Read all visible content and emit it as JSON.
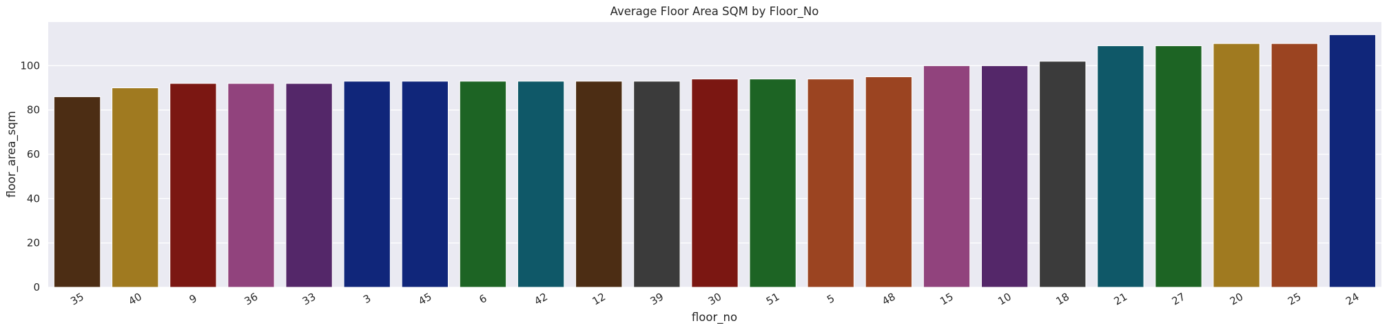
{
  "chart_data": {
    "type": "bar",
    "title": "Average Floor Area SQM by Floor_No",
    "xlabel": "floor_no",
    "ylabel": "floor_area_sqm",
    "categories": [
      "35",
      "40",
      "9",
      "36",
      "33",
      "3",
      "45",
      "6",
      "42",
      "12",
      "39",
      "30",
      "51",
      "5",
      "48",
      "15",
      "10",
      "18",
      "21",
      "27",
      "20",
      "25",
      "24"
    ],
    "values": [
      86,
      90,
      92,
      92,
      92,
      93,
      93,
      93,
      93,
      93,
      93,
      94,
      94,
      94,
      95,
      100,
      100,
      102,
      109,
      109,
      110,
      110,
      114
    ],
    "bar_colors": [
      "#4c2d14",
      "#a07a20",
      "#7b1712",
      "#91437d",
      "#542769",
      "#10267a",
      "#10267a",
      "#1d6424",
      "#0f5868",
      "#4c2d14",
      "#3b3b3b",
      "#7b1712",
      "#1d6424",
      "#9b4421",
      "#9b4421",
      "#91437d",
      "#542769",
      "#3b3b3b",
      "#0f5868",
      "#1d6424",
      "#a07a20",
      "#9b4421",
      "#10267a"
    ],
    "ylim": [
      0,
      119.7
    ],
    "yticks": [
      0,
      20,
      40,
      60,
      80,
      100
    ],
    "x_tick_rotation": -30,
    "grid": true,
    "background_color": "#eaeaf2",
    "grid_color": "#ffffff"
  }
}
